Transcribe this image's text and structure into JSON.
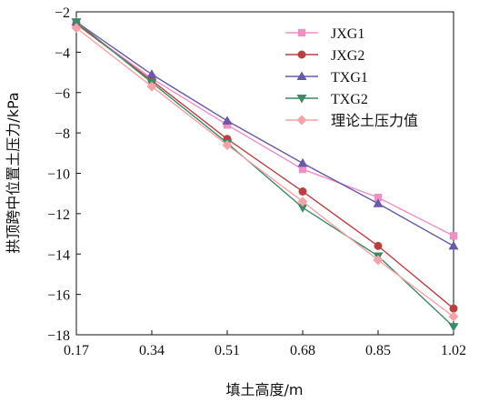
{
  "chart_data": {
    "type": "line",
    "xlabel": "填土高度/m",
    "ylabel": "拱顶跨中位置土压力/kPa",
    "x": [
      0.17,
      0.34,
      0.51,
      0.68,
      0.85,
      1.02
    ],
    "x_tick_labels": [
      "0.17",
      "0.34",
      "0.51",
      "0.68",
      "0.85",
      "1.02"
    ],
    "xlim": [
      0.17,
      1.02
    ],
    "ylim": [
      -18,
      -2
    ],
    "y_ticks": [
      -2,
      -4,
      -6,
      -8,
      -10,
      -12,
      -14,
      -16,
      -18
    ],
    "y_tick_labels": [
      "−2",
      "−4",
      "−6",
      "−8",
      "−10",
      "−12",
      "−14",
      "−16",
      "−18"
    ],
    "grid": false,
    "legend_position": "top-right",
    "series": [
      {
        "name": "JXG1",
        "color": "#ee8fc6",
        "marker": "square",
        "values": [
          -2.6,
          -5.3,
          -7.6,
          -9.8,
          -11.2,
          -13.1
        ]
      },
      {
        "name": "JXG2",
        "color": "#b84040",
        "marker": "circle",
        "values": [
          -2.6,
          -5.4,
          -8.3,
          -10.9,
          -13.6,
          -16.7
        ]
      },
      {
        "name": "TXG1",
        "color": "#6a58a8",
        "marker": "triangle-up",
        "values": [
          -2.5,
          -5.1,
          -7.4,
          -9.5,
          -11.5,
          -13.6
        ]
      },
      {
        "name": "TXG2",
        "color": "#3c8a66",
        "marker": "triangle-down",
        "values": [
          -2.5,
          -5.5,
          -8.5,
          -11.7,
          -14.1,
          -17.6
        ]
      },
      {
        "name": "理论土压力值",
        "color": "#f4a3a8",
        "marker": "diamond",
        "values": [
          -2.8,
          -5.7,
          -8.6,
          -11.4,
          -14.3,
          -17.1
        ]
      }
    ]
  }
}
